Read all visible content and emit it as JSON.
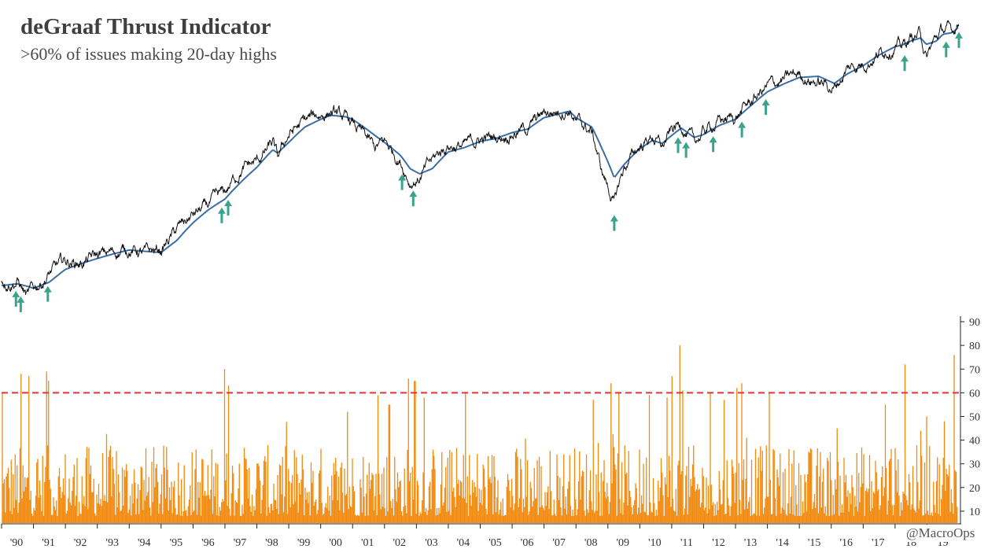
{
  "title": "deGraaf Thrust Indicator",
  "subtitle": ">60% of issues making 20-day highs",
  "credit": "@MacroOps",
  "colors": {
    "price": "#111111",
    "moving_average": "#3b6ea5",
    "signal_arrow": "#3aa38c",
    "bars": "#f28a0f",
    "threshold": "#d9383a",
    "axis": "#222222"
  },
  "chart_data": [
    {
      "type": "line",
      "title": "deGraaf Thrust Indicator",
      "subtitle": ">60% of issues making 20-day highs",
      "y_scale": "log",
      "y_axis_labels_shown": false,
      "grid": false,
      "x": [
        1990.0,
        1990.5,
        1990.8,
        1991.0,
        1991.5,
        1992.0,
        1992.5,
        1993.0,
        1993.5,
        1994.0,
        1994.5,
        1995.0,
        1995.5,
        1996.0,
        1996.5,
        1997.0,
        1997.5,
        1998.0,
        1998.5,
        1998.65,
        1999.0,
        1999.5,
        2000.0,
        2000.3,
        2000.8,
        2001.0,
        2001.7,
        2002.0,
        2002.5,
        2002.8,
        2003.1,
        2003.5,
        2004.0,
        2004.5,
        2005.0,
        2005.5,
        2006.0,
        2006.5,
        2007.0,
        2007.8,
        2008.0,
        2008.5,
        2008.8,
        2009.2,
        2009.5,
        2010.0,
        2010.4,
        2010.7,
        2011.0,
        2011.3,
        2011.7,
        2012.0,
        2012.5,
        2013.0,
        2013.5,
        2014.0,
        2014.5,
        2015.0,
        2015.6,
        2016.1,
        2016.5,
        2017.0,
        2017.5,
        2018.0,
        2018.2,
        2018.5,
        2018.8,
        2018.98,
        2019.3,
        2019.5,
        2019.8,
        2020.0
      ],
      "series": [
        {
          "name": "",
          "kind": "price",
          "values": [
            353,
            357,
            307,
            326,
            377,
            416,
            414,
            436,
            450,
            467,
            444,
            459,
            545,
            617,
            670,
            740,
            913,
            970,
            1130,
            980,
            1229,
            1370,
            1460,
            1500,
            1380,
            1340,
            1080,
            1148,
            990,
            830,
            855,
            980,
            1131,
            1110,
            1181,
            1200,
            1268,
            1300,
            1468,
            1550,
            1378,
            1250,
            900,
            680,
            920,
            1115,
            1217,
            1100,
            1258,
            1350,
            1130,
            1257,
            1380,
            1426,
            1630,
            1848,
            1950,
            2058,
            1920,
            1830,
            2150,
            2270,
            2470,
            2673,
            2580,
            2800,
            2900,
            2350,
            2810,
            3000,
            2950,
            3230
          ]
        },
        {
          "name": "",
          "kind": "moving_average",
          "values": [
            340,
            345,
            338,
            332,
            350,
            390,
            410,
            428,
            445,
            460,
            455,
            450,
            500,
            580,
            650,
            710,
            820,
            930,
            1080,
            1050,
            1150,
            1310,
            1400,
            1450,
            1430,
            1400,
            1220,
            1150,
            1030,
            920,
            880,
            920,
            1060,
            1100,
            1160,
            1190,
            1250,
            1290,
            1420,
            1500,
            1420,
            1310,
            1100,
            850,
            950,
            1090,
            1170,
            1140,
            1220,
            1300,
            1200,
            1230,
            1330,
            1400,
            1580,
            1770,
            1890,
            2000,
            2020,
            1900,
            2060,
            2210,
            2420,
            2600,
            2630,
            2730,
            2800,
            2650,
            2730,
            2890,
            2930,
            3080
          ]
        }
      ],
      "arrows_x": [
        1990.45,
        1990.6,
        1991.45,
        1996.9,
        1997.1,
        2002.55,
        2002.9,
        2009.2,
        2011.2,
        2011.45,
        2012.3,
        2013.2,
        2013.95,
        2018.3,
        2019.6,
        2020.0
      ]
    },
    {
      "type": "bar",
      "y_range": [
        5,
        92
      ],
      "y_ticks": [
        "90",
        "80",
        "70",
        "60",
        "50",
        "40",
        "30",
        "20",
        "10"
      ],
      "x_tick_labels": [
        "'90",
        "'91",
        "'92",
        "'93",
        "'94",
        "'95",
        "'96",
        "'97",
        "'98",
        "'99",
        "'00",
        "'01",
        "'02",
        "'03",
        "'04",
        "'05",
        "'06",
        "'07",
        "'08",
        "'09",
        "'10",
        "'11",
        "'12",
        "'13",
        "'14",
        "'15",
        "'16",
        "'17",
        "'18",
        "'19"
      ],
      "threshold": 60,
      "threshold_style": "dashed",
      "x_span": [
        1990.0,
        2020.0
      ],
      "spikes": [
        {
          "x": 1990.02,
          "y": 60
        },
        {
          "x": 1990.62,
          "y": 68
        },
        {
          "x": 1990.85,
          "y": 67
        },
        {
          "x": 1991.42,
          "y": 69
        },
        {
          "x": 1991.47,
          "y": 65
        },
        {
          "x": 1997.0,
          "y": 70
        },
        {
          "x": 1997.12,
          "y": 63
        },
        {
          "x": 2000.85,
          "y": 52
        },
        {
          "x": 2001.8,
          "y": 59
        },
        {
          "x": 2002.15,
          "y": 55
        },
        {
          "x": 2002.75,
          "y": 66
        },
        {
          "x": 2002.95,
          "y": 65
        },
        {
          "x": 2003.25,
          "y": 58
        },
        {
          "x": 2004.55,
          "y": 60
        },
        {
          "x": 2008.55,
          "y": 57
        },
        {
          "x": 2009.1,
          "y": 64
        },
        {
          "x": 2009.35,
          "y": 60
        },
        {
          "x": 2010.3,
          "y": 59
        },
        {
          "x": 2010.85,
          "y": 58
        },
        {
          "x": 2011.0,
          "y": 67
        },
        {
          "x": 2011.25,
          "y": 80
        },
        {
          "x": 2011.35,
          "y": 61
        },
        {
          "x": 2012.2,
          "y": 60
        },
        {
          "x": 2012.65,
          "y": 57
        },
        {
          "x": 2013.05,
          "y": 62
        },
        {
          "x": 2013.2,
          "y": 64
        },
        {
          "x": 2014.05,
          "y": 60
        },
        {
          "x": 2017.7,
          "y": 55
        },
        {
          "x": 2018.3,
          "y": 72
        },
        {
          "x": 2019.0,
          "y": 50
        },
        {
          "x": 2019.55,
          "y": 48
        },
        {
          "x": 2019.85,
          "y": 76
        },
        {
          "x": 2020.0,
          "y": 72
        }
      ]
    }
  ]
}
